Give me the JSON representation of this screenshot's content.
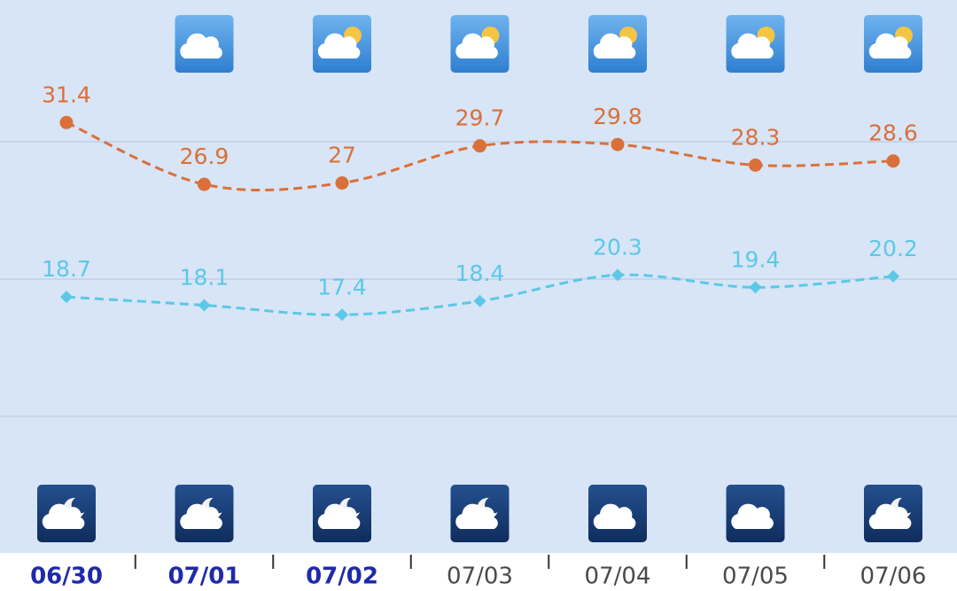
{
  "chart_data": {
    "type": "line",
    "categories": [
      "06/30",
      "07/01",
      "07/02",
      "07/03",
      "07/04",
      "07/05",
      "07/06"
    ],
    "series": [
      {
        "color": "#d9703a",
        "marker": "circle",
        "values": [
          31.4,
          26.9,
          27,
          29.7,
          29.8,
          28.3,
          28.6
        ]
      },
      {
        "color": "#5bc8e8",
        "marker": "diamond",
        "values": [
          18.7,
          18.1,
          17.4,
          18.4,
          20.3,
          19.4,
          20.2
        ]
      }
    ],
    "ylim": [
      0,
      40
    ],
    "yticks": [
      10,
      20,
      30
    ],
    "grid": true
  }
}
